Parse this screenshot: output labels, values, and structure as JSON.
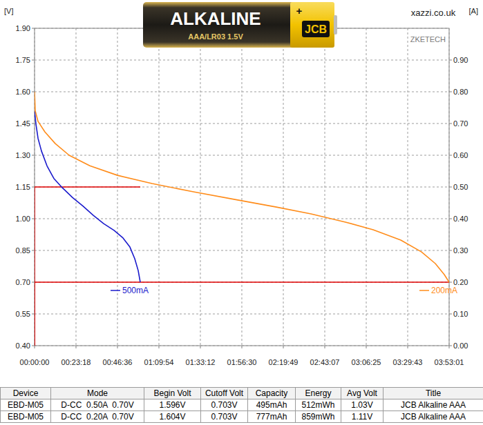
{
  "chart_data": {
    "type": "line",
    "y_label": "[V]",
    "y2_label": "[A]",
    "annotations": [
      "xazzi.co.uk",
      "ZKETECH"
    ],
    "battery_label": [
      "ALKALINE",
      "AAA/LR03 1.5V",
      "JCB",
      "+"
    ],
    "grid": true,
    "xlim": [
      0,
      13981
    ],
    "xticks": [
      {
        "value": 0,
        "label": "00:00:00"
      },
      {
        "value": 1398,
        "label": "00:23:18"
      },
      {
        "value": 2796,
        "label": "00:46:36"
      },
      {
        "value": 4194,
        "label": "01:09:54"
      },
      {
        "value": 5592,
        "label": "01:33:12"
      },
      {
        "value": 6990,
        "label": "01:56:30"
      },
      {
        "value": 8389,
        "label": "02:19:49"
      },
      {
        "value": 9787,
        "label": "02:43:07"
      },
      {
        "value": 11185,
        "label": "03:06:25"
      },
      {
        "value": 12583,
        "label": "03:29:43"
      },
      {
        "value": 13981,
        "label": "03:53:01"
      }
    ],
    "ylim": [
      0.4,
      1.9
    ],
    "yticks": [
      {
        "value": 0.4,
        "label": "0.40"
      },
      0.55,
      {
        "value": 0.7,
        "label": "0.70"
      },
      0.85,
      {
        "value": 1.0,
        "label": "1.00"
      },
      1.15,
      {
        "value": 1.3,
        "label": "1.30"
      },
      1.45,
      {
        "value": 1.6,
        "label": "1.60"
      },
      1.75,
      {
        "value": 1.9,
        "label": "1.90"
      }
    ],
    "y2lim": [
      0,
      1.0
    ],
    "y2ticks": [
      {
        "value": 0,
        "label": "0.00"
      },
      {
        "value": 0.1,
        "label": "0.10"
      },
      {
        "value": 0.2,
        "label": "0.20"
      },
      {
        "value": 0.3,
        "label": "0.30"
      },
      {
        "value": 0.4,
        "label": "0.40"
      },
      {
        "value": 0.5,
        "label": "0.50"
      },
      {
        "value": 0.6,
        "label": "0.60"
      },
      {
        "value": 0.7,
        "label": "0.70"
      },
      {
        "value": 0.8,
        "label": "0.80"
      },
      {
        "value": 0.9,
        "label": "0.90"
      }
    ],
    "series": [
      {
        "name": "500mA",
        "color": "#1a1acc",
        "x": [
          0,
          47,
          117,
          233,
          419,
          652,
          932,
          1282,
          1631,
          1981,
          2330,
          2680,
          2983,
          3216,
          3379,
          3495,
          3565
        ],
        "values": [
          1.51,
          1.447,
          1.38,
          1.32,
          1.25,
          1.19,
          1.147,
          1.1,
          1.06,
          1.016,
          0.977,
          0.945,
          0.909,
          0.866,
          0.811,
          0.755,
          0.7
        ]
      },
      {
        "name": "200mA",
        "color": "#ff8c1a",
        "x": [
          0,
          23,
          117,
          350,
          699,
          1165,
          1864,
          2796,
          3961,
          5359,
          6757,
          8155,
          9321,
          10486,
          11418,
          12350,
          13049,
          13515,
          13818,
          13981
        ],
        "values": [
          1.6,
          1.51,
          1.46,
          1.41,
          1.355,
          1.3,
          1.25,
          1.205,
          1.166,
          1.127,
          1.091,
          1.055,
          1.023,
          0.984,
          0.948,
          0.899,
          0.843,
          0.788,
          0.736,
          0.7
        ]
      },
      {
        "color": "#e00000",
        "axis": "y2",
        "x": [
          0,
          0,
          3565
        ],
        "values": [
          0,
          0.5,
          0.5
        ]
      },
      {
        "color": "#e00000",
        "axis": "y2",
        "x": [
          0,
          0,
          13981
        ],
        "values": [
          0,
          0.2,
          0.2
        ]
      }
    ]
  },
  "table": {
    "columns": [
      "Device",
      "Mode",
      "Begin Volt",
      "Cutoff Volt",
      "Capacity",
      "Energy",
      "Avg Volt",
      "Title"
    ],
    "rows": [
      [
        "EBD-M05",
        "D-CC  0.50A  0.70V",
        "1.596V",
        "0.703V",
        "495mAh",
        "512mWh",
        "1.03V",
        "JCB Alkaline AAA"
      ],
      [
        "EBD-M05",
        "D-CC  0.20A  0.70V",
        "1.604V",
        "0.703V",
        "777mAh",
        "859mWh",
        "1.11V",
        "JCB Alkaline AAA"
      ]
    ]
  }
}
